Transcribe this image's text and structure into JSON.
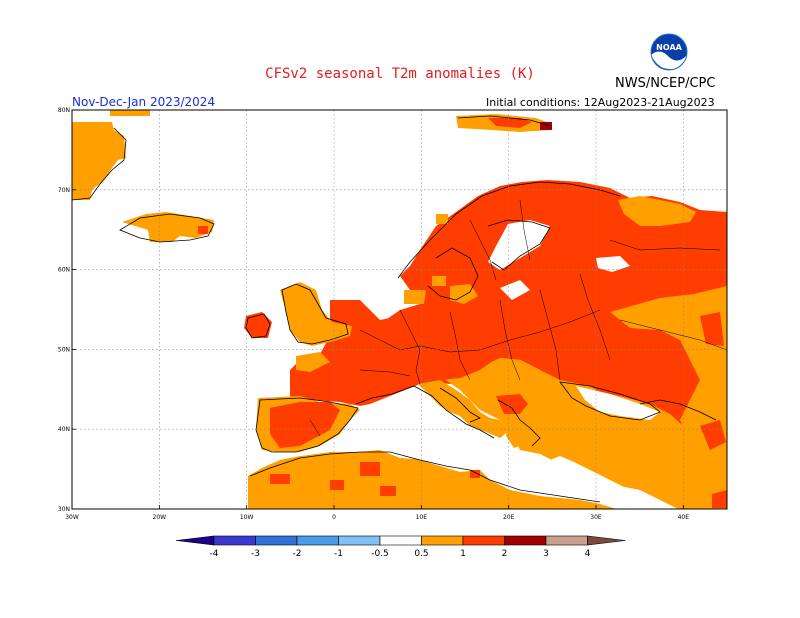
{
  "header": {
    "title": "CFSv2 seasonal T2m anomalies (K)",
    "organization": "NWS/NCEP/CPC",
    "season": "Nov-Dec-Jan 2023/2024",
    "initial_conditions": "Initial conditions: 12Aug2023-21Aug2023",
    "logo_text": "NOAA"
  },
  "map": {
    "lon_labels": [
      "30W",
      "20W",
      "10W",
      "0",
      "10E",
      "20E",
      "30E",
      "40E"
    ],
    "lat_labels": [
      "30N",
      "40N",
      "50N",
      "60N",
      "70N",
      "80N"
    ],
    "lon_range": [
      -30,
      45
    ],
    "lat_range": [
      30,
      80
    ]
  },
  "legend": {
    "tick_labels": [
      "-4",
      "-3",
      "-2",
      "-1",
      "-0.5",
      "0.5",
      "1",
      "2",
      "3",
      "4"
    ],
    "colors": [
      "#1c008c",
      "#3a3ad0",
      "#2f72d8",
      "#4a9be8",
      "#80c0f8",
      "#ffffff",
      "#ffa000",
      "#ff3d00",
      "#a00000",
      "#c8a090",
      "#7a4a40"
    ]
  },
  "anomaly_colors": {
    "0.5-1": "#ffa000",
    "1-2": "#ff3d00",
    "2-3": "#a00000"
  },
  "icons": [
    "noaa-logo"
  ]
}
